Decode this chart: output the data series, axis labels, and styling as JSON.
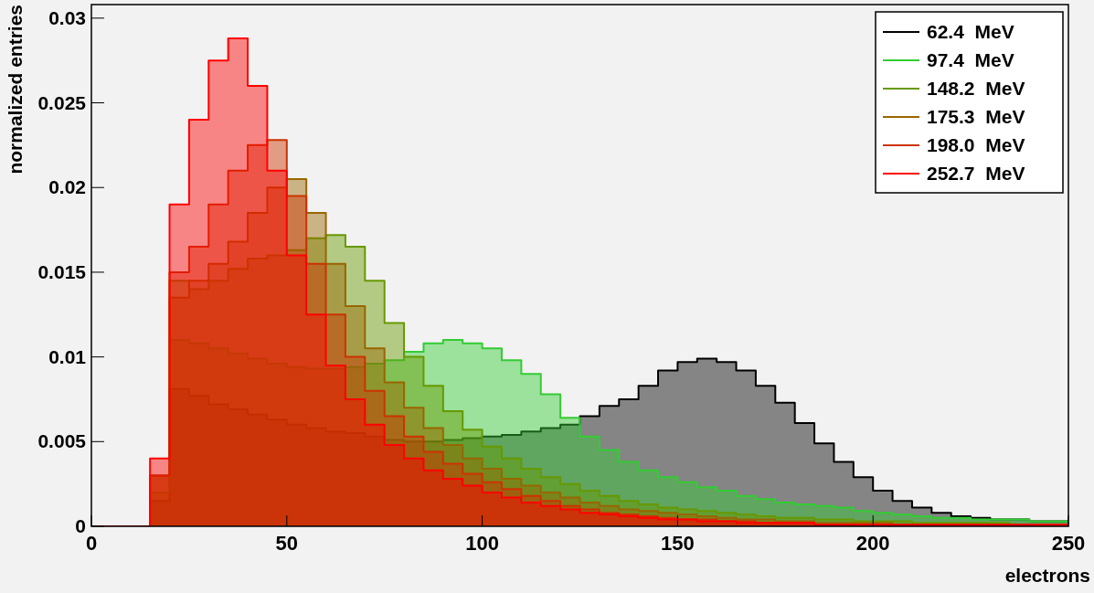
{
  "chart_data": {
    "type": "histogram",
    "xlabel": "electrons",
    "ylabel": "normalized entries",
    "legend": "top right",
    "xlim": [
      0,
      250
    ],
    "xticks": [
      0,
      50,
      100,
      150,
      200,
      250
    ],
    "ylim": [
      0,
      0.0308
    ],
    "yticks": [
      0,
      0.005,
      0.01,
      0.015,
      0.02,
      0.025,
      0.03
    ],
    "bins": [
      0,
      5,
      10,
      15,
      20,
      25,
      30,
      35,
      40,
      45,
      50,
      55,
      60,
      65,
      70,
      75,
      80,
      85,
      90,
      95,
      100,
      105,
      110,
      115,
      120,
      125,
      130,
      135,
      140,
      145,
      150,
      155,
      160,
      165,
      170,
      175,
      180,
      185,
      190,
      195,
      200,
      205,
      210,
      215,
      220,
      225,
      230,
      235,
      240,
      245,
      250
    ],
    "series": [
      {
        "name": "62.4  MeV",
        "color": "#000000",
        "values": [
          0,
          0,
          0,
          0.0015,
          0.0081,
          0.0077,
          0.0072,
          0.0069,
          0.0066,
          0.0063,
          0.006,
          0.0058,
          0.0056,
          0.0055,
          0.0053,
          0.0051,
          0.005,
          0.005,
          0.0051,
          0.0052,
          0.0053,
          0.0054,
          0.0056,
          0.0058,
          0.006,
          0.0065,
          0.0071,
          0.0075,
          0.0083,
          0.0092,
          0.0097,
          0.0099,
          0.0097,
          0.0092,
          0.0083,
          0.0073,
          0.0061,
          0.0049,
          0.0038,
          0.0029,
          0.0021,
          0.0015,
          0.0011,
          0.0008,
          0.0006,
          0.0005,
          0.0004,
          0.0004,
          0.0003,
          0.0003
        ]
      },
      {
        "name": "97.4  MeV",
        "color": "#33cc33",
        "values": [
          0,
          0,
          0,
          0.002,
          0.011,
          0.0108,
          0.0105,
          0.0102,
          0.0099,
          0.0096,
          0.0094,
          0.0093,
          0.0093,
          0.0094,
          0.0096,
          0.0098,
          0.0103,
          0.0108,
          0.011,
          0.0108,
          0.0105,
          0.0098,
          0.009,
          0.0078,
          0.0064,
          0.0053,
          0.0045,
          0.0038,
          0.0033,
          0.0029,
          0.0026,
          0.0023,
          0.0021,
          0.0018,
          0.0016,
          0.0014,
          0.0013,
          0.0012,
          0.0011,
          0.0009,
          0.0008,
          0.0007,
          0.0006,
          0.0005,
          0.0005,
          0.0004,
          0.0004,
          0.0004,
          0.0003,
          0.0003
        ]
      },
      {
        "name": "148.2  MeV",
        "color": "#669900",
        "values": [
          0,
          0,
          0,
          0.003,
          0.0145,
          0.014,
          0.0145,
          0.0152,
          0.0158,
          0.016,
          0.0163,
          0.017,
          0.0172,
          0.0165,
          0.0145,
          0.012,
          0.01,
          0.0083,
          0.0068,
          0.0057,
          0.0047,
          0.004,
          0.0034,
          0.0029,
          0.0025,
          0.0021,
          0.0018,
          0.0015,
          0.0013,
          0.0011,
          0.001,
          0.0009,
          0.0008,
          0.0007,
          0.0006,
          0.0005,
          0.0005,
          0.0004,
          0.0004,
          0.0003,
          0.0003,
          0.0003,
          0.0002,
          0.0002,
          0.0002,
          0.0002,
          0.0002,
          0.0001,
          0.0001,
          0.0001
        ]
      },
      {
        "name": "175.3  MeV",
        "color": "#996600",
        "values": [
          0,
          0,
          0,
          0.003,
          0.0135,
          0.0145,
          0.0155,
          0.0168,
          0.0185,
          0.02,
          0.0205,
          0.0185,
          0.0155,
          0.013,
          0.0105,
          0.0085,
          0.007,
          0.0058,
          0.0048,
          0.004,
          0.0034,
          0.0028,
          0.0024,
          0.002,
          0.0017,
          0.0014,
          0.0012,
          0.001,
          0.0009,
          0.0008,
          0.0007,
          0.0006,
          0.0005,
          0.0004,
          0.0004,
          0.0003,
          0.0003,
          0.0002,
          0.0002,
          0.0002,
          0.0002,
          0.0001,
          0.0001,
          0.0001,
          0.0001,
          0.0001,
          0.0001,
          0.0001,
          0.0001,
          0.0001
        ]
      },
      {
        "name": "198.0  MeV",
        "color": "#cc3300",
        "values": [
          0,
          0,
          0,
          0.003,
          0.015,
          0.0165,
          0.019,
          0.021,
          0.0225,
          0.0228,
          0.0195,
          0.0155,
          0.0125,
          0.01,
          0.008,
          0.0065,
          0.0053,
          0.0044,
          0.0037,
          0.0031,
          0.0026,
          0.0022,
          0.0018,
          0.0015,
          0.0012,
          0.001,
          0.0008,
          0.0007,
          0.0006,
          0.0005,
          0.0004,
          0.0004,
          0.0003,
          0.0003,
          0.0002,
          0.0002,
          0.0002,
          0.0001,
          0.0001,
          0.0001,
          0.0001,
          0.0001,
          0.0001,
          0.0001,
          0.0001,
          0.0001,
          0.0001,
          0.0001,
          0.0001,
          0.0001
        ]
      },
      {
        "name": "252.7  MeV",
        "color": "#ff0000",
        "values": [
          0,
          0,
          0,
          0.004,
          0.019,
          0.024,
          0.0275,
          0.0288,
          0.026,
          0.021,
          0.016,
          0.0125,
          0.0095,
          0.0075,
          0.006,
          0.0048,
          0.004,
          0.0033,
          0.0028,
          0.0024,
          0.002,
          0.0017,
          0.0014,
          0.0012,
          0.001,
          0.0008,
          0.0007,
          0.0006,
          0.0005,
          0.0004,
          0.0004,
          0.0003,
          0.0003,
          0.0002,
          0.0002,
          0.0002,
          0.0002,
          0.0001,
          0.0001,
          0.0001,
          0.0001,
          0.0001,
          0.0001,
          0.0001,
          0.0001,
          0.0001,
          0.0001,
          0.0001,
          0.0001,
          0.0001
        ]
      }
    ]
  }
}
